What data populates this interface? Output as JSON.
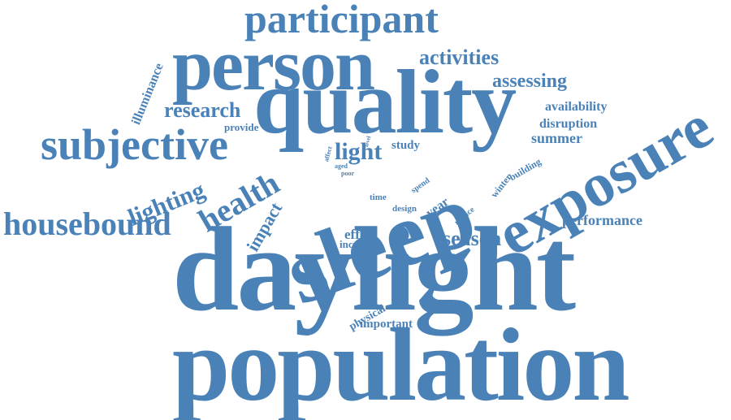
{
  "color": "#4a82b8",
  "words": [
    {
      "id": "daylight",
      "text": "daylight"
    },
    {
      "id": "population",
      "text": "population"
    },
    {
      "id": "sleep",
      "text": "sleep"
    },
    {
      "id": "quality",
      "text": "quality"
    },
    {
      "id": "person",
      "text": "person"
    },
    {
      "id": "exposure",
      "text": "exposure"
    },
    {
      "id": "participant",
      "text": "participant"
    },
    {
      "id": "subjective",
      "text": "subjective"
    },
    {
      "id": "housebound",
      "text": "housebound"
    },
    {
      "id": "health",
      "text": "health"
    },
    {
      "id": "lighting",
      "text": "lighting"
    },
    {
      "id": "research",
      "text": "research"
    },
    {
      "id": "activities",
      "text": "activities"
    },
    {
      "id": "assessing",
      "text": "assessing"
    },
    {
      "id": "light",
      "text": "light"
    },
    {
      "id": "season",
      "text": "season"
    },
    {
      "id": "performance",
      "text": "performance"
    },
    {
      "id": "availability",
      "text": "availability"
    },
    {
      "id": "disruption",
      "text": "disruption"
    },
    {
      "id": "summer",
      "text": "summer"
    },
    {
      "id": "impact",
      "text": "impact"
    },
    {
      "id": "illuminance",
      "text": "illuminance"
    },
    {
      "id": "provide",
      "text": "provide"
    },
    {
      "id": "study",
      "text": "study"
    },
    {
      "id": "effect",
      "text": "effect"
    },
    {
      "id": "increase",
      "text": "increase"
    },
    {
      "id": "important",
      "text": "important"
    },
    {
      "id": "physical",
      "text": "physical"
    },
    {
      "id": "year",
      "text": "year"
    },
    {
      "id": "winter",
      "text": "winter"
    },
    {
      "id": "building",
      "text": "building"
    },
    {
      "id": "design",
      "text": "design"
    },
    {
      "id": "time",
      "text": "time"
    },
    {
      "id": "spend",
      "text": "spend"
    },
    {
      "id": "reduce",
      "text": "reduce"
    },
    {
      "id": "aged",
      "text": "aged"
    },
    {
      "id": "poor",
      "text": "poor"
    },
    {
      "id": "affect",
      "text": "affect"
    },
    {
      "id": "level",
      "text": "level"
    }
  ]
}
